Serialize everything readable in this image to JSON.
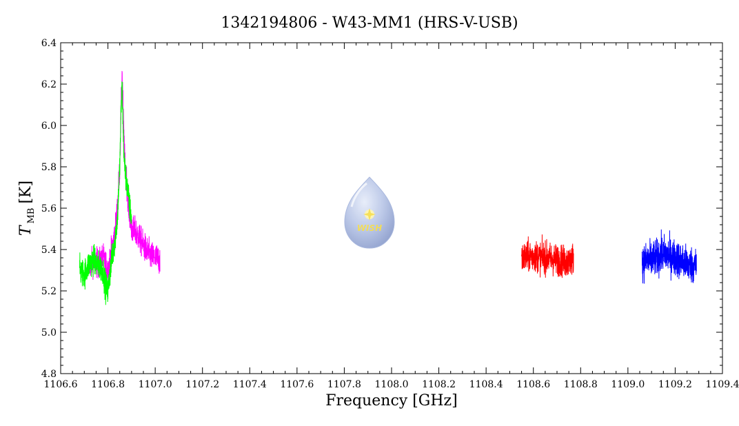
{
  "chart_data": {
    "type": "line",
    "title": "1342194806 - W43-MM1 (HRS-V-USB)",
    "xlabel": "Frequency [GHz]",
    "ylabel": {
      "symbol": "T",
      "subscript": "MB",
      "unit": "[K]"
    },
    "xlim": [
      1106.6,
      1109.4
    ],
    "ylim": [
      4.8,
      6.4
    ],
    "x_ticks": [
      "1106.6",
      "1106.8",
      "1107.0",
      "1107.2",
      "1107.4",
      "1107.6",
      "1107.8",
      "1108.0",
      "1108.2",
      "1108.4",
      "1108.6",
      "1108.8",
      "1109.0",
      "1109.2",
      "1109.4"
    ],
    "y_ticks": [
      "4.8",
      "5.0",
      "5.2",
      "5.4",
      "5.6",
      "5.8",
      "6.0",
      "6.2",
      "6.4"
    ],
    "grid": false,
    "legend": "none",
    "watermark": "WISH",
    "series": [
      {
        "color": "#ff00ff",
        "x": [
          1106.72,
          1106.74,
          1106.76,
          1106.78,
          1106.8,
          1106.82,
          1106.83,
          1106.84,
          1106.85,
          1106.855,
          1106.86,
          1106.865,
          1106.87,
          1106.88,
          1106.89,
          1106.9,
          1106.92,
          1106.94,
          1106.96,
          1106.98,
          1107.0,
          1107.02
        ],
        "y": [
          5.32,
          5.35,
          5.33,
          5.36,
          5.3,
          5.42,
          5.48,
          5.6,
          5.8,
          6.05,
          6.25,
          6.05,
          5.85,
          5.72,
          5.58,
          5.5,
          5.48,
          5.44,
          5.4,
          5.37,
          5.36,
          5.35
        ],
        "noise_amplitude": 0.12
      },
      {
        "color": "#00ff00",
        "x": [
          1106.68,
          1106.7,
          1106.72,
          1106.74,
          1106.76,
          1106.78,
          1106.79,
          1106.8,
          1106.81,
          1106.82,
          1106.83,
          1106.84,
          1106.85,
          1106.855,
          1106.86,
          1106.865,
          1106.87,
          1106.88,
          1106.89,
          1106.9
        ],
        "y": [
          5.3,
          5.28,
          5.33,
          5.35,
          5.32,
          5.3,
          5.22,
          5.2,
          5.3,
          5.38,
          5.45,
          5.55,
          5.8,
          6.05,
          6.2,
          5.95,
          5.8,
          5.72,
          5.62,
          5.55
        ],
        "noise_amplitude": 0.12
      },
      {
        "color": "#ff0000",
        "x": [
          1108.55,
          1108.6,
          1108.65,
          1108.7,
          1108.75,
          1108.77
        ],
        "y": [
          5.36,
          5.37,
          5.36,
          5.35,
          5.34,
          5.36
        ],
        "noise_amplitude": 0.13
      },
      {
        "color": "#0000ff",
        "x": [
          1109.06,
          1109.1,
          1109.15,
          1109.2,
          1109.25,
          1109.29
        ],
        "y": [
          5.34,
          5.35,
          5.38,
          5.36,
          5.33,
          5.32
        ],
        "noise_amplitude": 0.15
      }
    ]
  }
}
